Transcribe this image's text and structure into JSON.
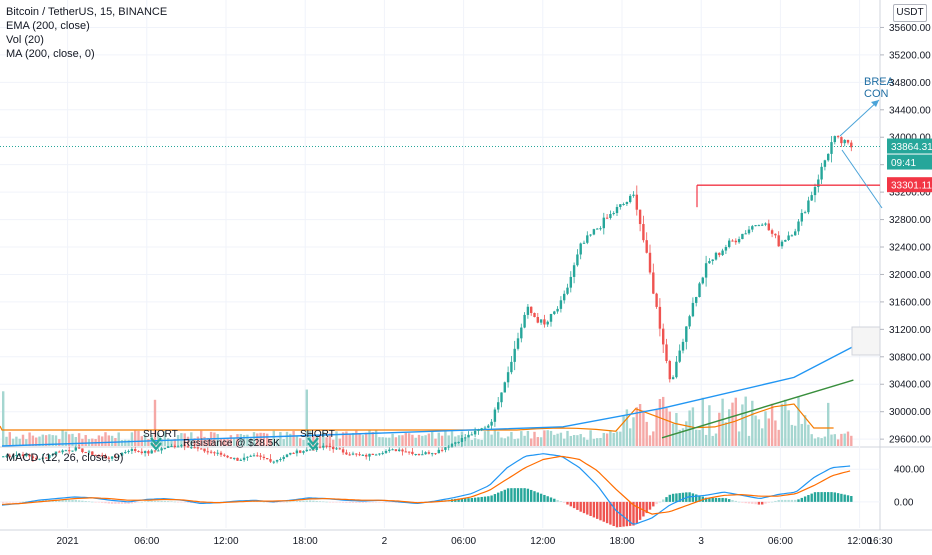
{
  "legend": {
    "symbol_line": "Bitcoin / TetherUS, 15, BINANCE",
    "indicators": [
      "EMA (200, close)",
      "Vol (20)",
      "MA (200, close, 0)"
    ],
    "macd": "MACD (12, 26, close, 9)"
  },
  "currency_button": "USDT",
  "price_axis": {
    "ticks": [
      "35600.00",
      "35200.00",
      "34800.00",
      "34400.00",
      "34000.00",
      "33600.00",
      "33200.00",
      "32800.00",
      "32400.00",
      "32000.00",
      "31600.00",
      "31200.00",
      "30800.00",
      "30400.00",
      "30000.00",
      "29600.00"
    ],
    "tick_values": [
      35600,
      35200,
      34800,
      34400,
      34000,
      33600,
      33200,
      32800,
      32400,
      32000,
      31600,
      31200,
      30800,
      30400,
      30000,
      29600
    ]
  },
  "macd_axis": {
    "ticks": [
      "400.00",
      "0.00"
    ],
    "tick_values": [
      400,
      0
    ]
  },
  "time_axis": {
    "labels": [
      "2021",
      "06:00",
      "12:00",
      "18:00",
      "2",
      "06:00",
      "12:00",
      "18:00",
      "3",
      "06:00",
      "12:00",
      "16:30"
    ]
  },
  "badges": {
    "last_price": "33864.31",
    "countdown": "09:41",
    "horizontal_line_price": "33301.11"
  },
  "annotations": {
    "short_1": "SHORT",
    "short_2": "SHORT",
    "resistance": "Resistance @ $28.5K",
    "breakout_1": "BREA",
    "breakout_2": "CON"
  },
  "colors": {
    "up": "#26a69a",
    "down": "#ef5350",
    "ema": "#2196f3",
    "ma": "#388e3c",
    "vol_ma": "#f57c00",
    "macd_line": "#2196f3",
    "signal_line": "#ff6d00",
    "hline": "#f23645",
    "price_line": "#26a69a"
  },
  "chart_data": {
    "type": "candlestick",
    "price_range": [
      29500,
      36000
    ],
    "macd_range": [
      -320,
      660
    ],
    "current_price": 33864.31,
    "hline_price": 33301.11,
    "candle_count": 258,
    "closes_hourly": [
      29350,
      29380,
      29300,
      29420,
      29460,
      29380,
      29320,
      29450,
      29400,
      29480,
      29520,
      29440,
      29380,
      29300,
      29350,
      29280,
      29400,
      29450,
      29500,
      29400,
      29350,
      29420,
      29450,
      29380,
      29420,
      29550,
      29680,
      29820,
      30600,
      31500,
      31250,
      31600,
      32400,
      32700,
      32950,
      33150,
      31800,
      30400,
      31400,
      32150,
      32400,
      32600,
      32800,
      32450,
      32700,
      33300,
      33980,
      33864
    ],
    "ema_points": [
      [
        0,
        29500
      ],
      [
        170,
        29780
      ],
      [
        200,
        30050
      ],
      [
        240,
        30500
      ],
      [
        258,
        30950
      ]
    ],
    "ma_points": [
      [
        200,
        29620
      ],
      [
        258,
        30460
      ]
    ],
    "macd": [
      -40,
      -20,
      20,
      40,
      60,
      50,
      20,
      0,
      30,
      40,
      20,
      -20,
      -10,
      10,
      20,
      0,
      20,
      50,
      40,
      20,
      10,
      20,
      0,
      -20,
      10,
      50,
      100,
      200,
      420,
      560,
      590,
      560,
      420,
      200,
      -100,
      -280,
      -200,
      -40,
      60,
      80,
      120,
      80,
      40,
      90,
      120,
      300,
      420,
      440
    ],
    "signal": [
      -30,
      -20,
      0,
      20,
      40,
      50,
      40,
      20,
      20,
      30,
      25,
      0,
      -10,
      0,
      10,
      10,
      15,
      35,
      40,
      30,
      20,
      20,
      10,
      -10,
      0,
      20,
      60,
      140,
      280,
      420,
      520,
      560,
      520,
      380,
      160,
      -40,
      -150,
      -120,
      -40,
      40,
      80,
      90,
      70,
      70,
      100,
      200,
      320,
      380
    ]
  }
}
